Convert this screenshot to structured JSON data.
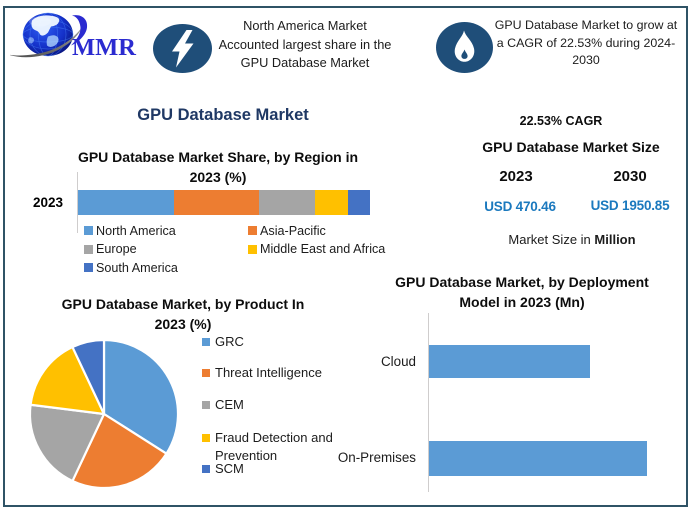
{
  "frame": {
    "border_color": "#2F5366",
    "background": "#FFFFFF"
  },
  "logo": {
    "text": "MMR",
    "color": "#2B2BD0",
    "icon": "globe-swoosh"
  },
  "header": {
    "badge_color": "#1F4E79",
    "left_note_lines": [
      "North America Market",
      "Accounted largest share in the",
      "GPU Database Market"
    ],
    "right_note_lines": [
      "GPU Database Market to grow at",
      "a CAGR of 22.53% during 2024-",
      "2030"
    ]
  },
  "main_title": "GPU Database Market",
  "stats": {
    "cagr": "22.53% CAGR",
    "size_title": "GPU Database Market Size",
    "year_left": "2023",
    "year_right": "2030",
    "value_left": "USD 470.46",
    "value_right": "USD 1950.85",
    "value_color": "#1B79BE",
    "footnote_prefix": "Market Size in ",
    "footnote_bold": "Million"
  },
  "chart_data": [
    {
      "type": "bar",
      "variant": "stacked-horizontal",
      "title": "GPU Database Market Share, by Region in 2023 (%)",
      "title_lines": [
        "GPU Database Market Share, by Region in",
        "2023 (%)"
      ],
      "categories": [
        "2023"
      ],
      "series": [
        {
          "name": "North America",
          "color": "#5B9BD5",
          "values": [
            33
          ]
        },
        {
          "name": "Asia-Pacific",
          "color": "#ED7D31",
          "values": [
            29
          ]
        },
        {
          "name": "Europe",
          "color": "#A5A5A5",
          "values": [
            19
          ]
        },
        {
          "name": "Middle East and Africa",
          "color": "#FFC000",
          "values": [
            11.5
          ]
        },
        {
          "name": "South America",
          "color": "#4472C4",
          "values": [
            7.5
          ]
        }
      ],
      "xlim": [
        0,
        100
      ],
      "unit": "%",
      "legend_position": "bottom",
      "grid": false
    },
    {
      "type": "pie",
      "title": "GPU Database Market, by Product In 2023 (%)",
      "title_lines": [
        "GPU Database Market, by Product In",
        "2023 (%)"
      ],
      "labels": [
        "GRC",
        "Threat Intelligence",
        "CEM",
        "Fraud Detection and Prevention",
        "SCM"
      ],
      "values": [
        34,
        23,
        20,
        16,
        7
      ],
      "colors": [
        "#5B9BD5",
        "#ED7D31",
        "#A5A5A5",
        "#FFC000",
        "#4472C4"
      ],
      "start_angle_deg": 0,
      "direction": "clockwise",
      "legend_position": "right",
      "unit": "%"
    },
    {
      "type": "bar",
      "variant": "horizontal",
      "title": "GPU Database Market, by Deployment Model in 2023 (Mn)",
      "title_lines": [
        "GPU Database Market, by Deployment",
        "Model in 2023 (Mn)"
      ],
      "categories": [
        "Cloud",
        "On-Premises"
      ],
      "values": [
        200,
        270
      ],
      "color": "#5B9BD5",
      "xlim": [
        0,
        300
      ],
      "unit": "Mn",
      "grid": false
    }
  ]
}
